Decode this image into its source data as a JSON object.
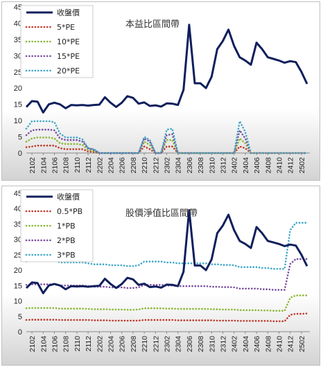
{
  "chart_data": [
    {
      "type": "line",
      "title": "本益比區間帶",
      "ylim": [
        0,
        45
      ],
      "yticks": [
        0,
        5,
        10,
        15,
        20,
        25,
        30,
        35,
        40,
        45
      ],
      "x": [
        "2101",
        "2102",
        "2103",
        "2104",
        "2105",
        "2106",
        "2107",
        "2108",
        "2109",
        "2110",
        "2111",
        "2112",
        "2201",
        "2202",
        "2203",
        "2204",
        "2205",
        "2206",
        "2207",
        "2208",
        "2209",
        "2210",
        "2211",
        "2212",
        "2301",
        "2302",
        "2303",
        "2304",
        "2305",
        "2306",
        "2307",
        "2308",
        "2309",
        "2310",
        "2311",
        "2312",
        "2401",
        "2402",
        "2403",
        "2404",
        "2405",
        "2406",
        "2407",
        "2408",
        "2409",
        "2410",
        "2411",
        "2412",
        "2501",
        "2502",
        "2503"
      ],
      "xtick_labels": [
        "2102",
        "2104",
        "2106",
        "2108",
        "2110",
        "2112",
        "2202",
        "2204",
        "2206",
        "2208",
        "2210",
        "2212",
        "2302",
        "2304",
        "2306",
        "2308",
        "2310",
        "2312",
        "2402",
        "2404",
        "2406",
        "2408",
        "2410",
        "2412",
        "2502"
      ],
      "legend_position": "top-left",
      "series": [
        {
          "name": "收盤價",
          "color": "#0f1f5c",
          "style": "solid",
          "values": [
            14.2,
            16.0,
            15.8,
            12.5,
            15.0,
            15.5,
            15.0,
            13.8,
            14.8,
            14.7,
            14.8,
            14.6,
            14.8,
            14.9,
            17.2,
            15.5,
            14.2,
            15.5,
            17.5,
            17.0,
            15.2,
            15.6,
            14.5,
            14.7,
            14.3,
            15.3,
            15.2,
            14.8,
            19.5,
            39.5,
            21.5,
            21.5,
            20.0,
            23.5,
            32.0,
            34.5,
            38.0,
            33.0,
            29.5,
            28.5,
            27.2,
            34.0,
            32.0,
            29.5,
            29.0,
            28.5,
            27.8,
            28.3,
            28.0,
            25.0,
            21.3
          ]
        },
        {
          "name": "5*PE",
          "color": "#c0392b",
          "style": "dotted",
          "values": [
            1.8,
            2.0,
            2.3,
            2.3,
            2.3,
            2.3,
            1.5,
            1.2,
            1.2,
            1.2,
            1.2,
            0.5,
            0.3,
            0,
            0,
            0,
            0,
            0,
            0,
            0,
            0,
            2.0,
            1.2,
            0,
            0,
            2.0,
            2.0,
            0,
            0,
            0,
            0,
            0,
            0,
            0,
            0,
            0,
            0,
            0,
            2.0,
            1.5,
            0,
            0,
            0,
            0,
            0,
            0,
            0,
            0,
            0,
            0,
            0
          ]
        },
        {
          "name": "10*PE",
          "color": "#8ab833",
          "style": "dotted",
          "values": [
            3.5,
            4.5,
            4.8,
            4.8,
            4.8,
            4.5,
            3.0,
            2.8,
            2.8,
            2.8,
            2.5,
            1.0,
            0.6,
            0,
            0,
            0,
            0,
            0,
            0,
            0,
            0,
            3.5,
            2.5,
            0,
            0,
            4.0,
            4.0,
            0,
            0,
            0,
            0,
            0,
            0,
            0,
            0,
            0,
            0,
            0,
            4.5,
            3.0,
            0,
            0,
            0,
            0,
            0,
            0,
            0,
            0,
            0,
            0,
            0
          ]
        },
        {
          "name": "15*PE",
          "color": "#7b4fa0",
          "style": "dotted",
          "values": [
            5.5,
            7.0,
            7.2,
            7.2,
            7.2,
            7.0,
            4.5,
            4.0,
            4.0,
            4.0,
            3.5,
            1.5,
            1.0,
            0,
            0,
            0,
            0,
            0,
            0,
            0,
            0,
            4.5,
            3.5,
            0,
            0,
            5.5,
            5.8,
            0,
            0,
            0,
            0,
            0,
            0,
            0,
            0,
            0,
            0,
            0,
            7.0,
            4.5,
            0,
            0,
            0,
            0,
            0,
            0,
            0,
            0,
            0,
            0,
            0
          ]
        },
        {
          "name": "20*PE",
          "color": "#3fa7c8",
          "style": "dotted",
          "values": [
            7.5,
            9.8,
            9.8,
            9.8,
            9.8,
            9.5,
            6.0,
            4.8,
            4.8,
            4.8,
            4.2,
            1.5,
            1.2,
            0,
            0,
            0,
            0,
            0,
            0,
            0,
            0,
            5.0,
            4.0,
            0,
            0,
            7.2,
            7.5,
            0,
            0,
            0,
            0,
            0,
            0,
            0,
            0,
            0,
            0,
            0,
            9.8,
            6.5,
            0,
            0,
            0,
            0,
            0,
            0,
            0,
            0,
            0,
            0,
            0
          ]
        }
      ]
    },
    {
      "type": "line",
      "title": "股價淨值比區間帶",
      "ylim": [
        0,
        45
      ],
      "yticks": [
        0,
        5,
        10,
        15,
        20,
        25,
        30,
        35,
        40,
        45
      ],
      "x": [
        "2101",
        "2102",
        "2103",
        "2104",
        "2105",
        "2106",
        "2107",
        "2108",
        "2109",
        "2110",
        "2111",
        "2112",
        "2201",
        "2202",
        "2203",
        "2204",
        "2205",
        "2206",
        "2207",
        "2208",
        "2209",
        "2210",
        "2211",
        "2212",
        "2301",
        "2302",
        "2303",
        "2304",
        "2305",
        "2306",
        "2307",
        "2308",
        "2309",
        "2310",
        "2311",
        "2312",
        "2401",
        "2402",
        "2403",
        "2404",
        "2405",
        "2406",
        "2407",
        "2408",
        "2409",
        "2410",
        "2411",
        "2412",
        "2501",
        "2502",
        "2503"
      ],
      "xtick_labels": [
        "2102",
        "2104",
        "2106",
        "2108",
        "2110",
        "2112",
        "2202",
        "2204",
        "2206",
        "2208",
        "2210",
        "2212",
        "2302",
        "2304",
        "2306",
        "2308",
        "2310",
        "2312",
        "2402",
        "2404",
        "2406",
        "2408",
        "2410",
        "2412",
        "2502"
      ],
      "legend_position": "top-left",
      "series": [
        {
          "name": "收盤價",
          "color": "#0f1f5c",
          "style": "solid",
          "values": [
            14.2,
            16.0,
            15.8,
            12.5,
            15.0,
            15.5,
            15.0,
            13.8,
            14.8,
            14.7,
            14.8,
            14.6,
            14.8,
            14.9,
            17.2,
            15.5,
            14.2,
            15.5,
            17.5,
            17.0,
            15.2,
            15.6,
            14.5,
            14.7,
            14.3,
            15.3,
            15.2,
            14.8,
            19.5,
            39.5,
            21.5,
            21.5,
            20.0,
            23.5,
            32.0,
            34.5,
            38.0,
            33.0,
            29.5,
            28.5,
            27.2,
            34.0,
            32.0,
            29.5,
            29.0,
            28.5,
            27.8,
            28.3,
            28.0,
            25.0,
            21.3
          ]
        },
        {
          "name": "0.5*PB",
          "color": "#c0392b",
          "style": "dotted",
          "values": [
            3.8,
            3.9,
            3.9,
            3.9,
            3.9,
            3.9,
            3.8,
            3.8,
            3.8,
            3.8,
            3.8,
            3.8,
            3.7,
            3.7,
            3.7,
            3.6,
            3.6,
            3.6,
            3.6,
            3.6,
            3.6,
            3.8,
            3.8,
            3.8,
            3.8,
            3.8,
            3.8,
            3.7,
            3.7,
            3.7,
            3.7,
            3.7,
            3.7,
            3.7,
            3.6,
            3.6,
            3.6,
            3.6,
            3.5,
            3.5,
            3.5,
            3.5,
            3.5,
            3.5,
            3.4,
            3.4,
            3.4,
            5.5,
            5.8,
            5.8,
            5.9
          ]
        },
        {
          "name": "1*PB",
          "color": "#8ab833",
          "style": "dotted",
          "values": [
            7.6,
            7.7,
            7.7,
            7.7,
            7.7,
            7.7,
            7.5,
            7.5,
            7.5,
            7.5,
            7.5,
            7.4,
            7.3,
            7.3,
            7.3,
            7.2,
            7.2,
            7.2,
            7.1,
            7.1,
            7.2,
            7.6,
            7.6,
            7.6,
            7.6,
            7.5,
            7.5,
            7.4,
            7.4,
            7.4,
            7.4,
            7.4,
            7.4,
            7.3,
            7.3,
            7.2,
            7.2,
            7.2,
            7.0,
            7.0,
            7.0,
            7.0,
            6.9,
            6.9,
            6.8,
            6.8,
            6.8,
            11.0,
            11.8,
            11.8,
            11.8
          ]
        },
        {
          "name": "2*PB",
          "color": "#7b4fa0",
          "style": "dotted",
          "values": [
            15.2,
            15.4,
            15.4,
            15.4,
            15.4,
            15.4,
            15.0,
            15.0,
            15.0,
            15.0,
            15.0,
            14.8,
            14.6,
            14.6,
            14.6,
            14.4,
            14.4,
            14.4,
            14.2,
            14.2,
            14.4,
            15.2,
            15.2,
            15.2,
            15.2,
            15.0,
            15.0,
            14.8,
            14.8,
            14.8,
            14.8,
            14.8,
            14.8,
            14.6,
            14.6,
            14.5,
            14.5,
            14.4,
            14.0,
            14.0,
            14.0,
            14.0,
            13.8,
            13.8,
            13.6,
            13.6,
            13.6,
            22.0,
            23.6,
            23.6,
            23.6
          ]
        },
        {
          "name": "3*PB",
          "color": "#3fa7c8",
          "style": "dotted",
          "values": [
            22.8,
            23.1,
            23.1,
            23.1,
            23.1,
            23.1,
            22.5,
            22.5,
            22.5,
            22.5,
            22.5,
            22.2,
            21.9,
            21.9,
            21.9,
            21.6,
            21.6,
            21.6,
            21.3,
            21.3,
            21.6,
            22.8,
            22.8,
            22.8,
            22.8,
            22.5,
            22.5,
            22.2,
            22.2,
            22.2,
            22.2,
            22.2,
            22.2,
            21.9,
            21.9,
            21.7,
            21.7,
            21.6,
            21.0,
            21.0,
            21.0,
            21.0,
            20.7,
            20.7,
            20.4,
            20.4,
            20.4,
            33.0,
            35.4,
            35.4,
            35.4
          ]
        }
      ]
    }
  ]
}
